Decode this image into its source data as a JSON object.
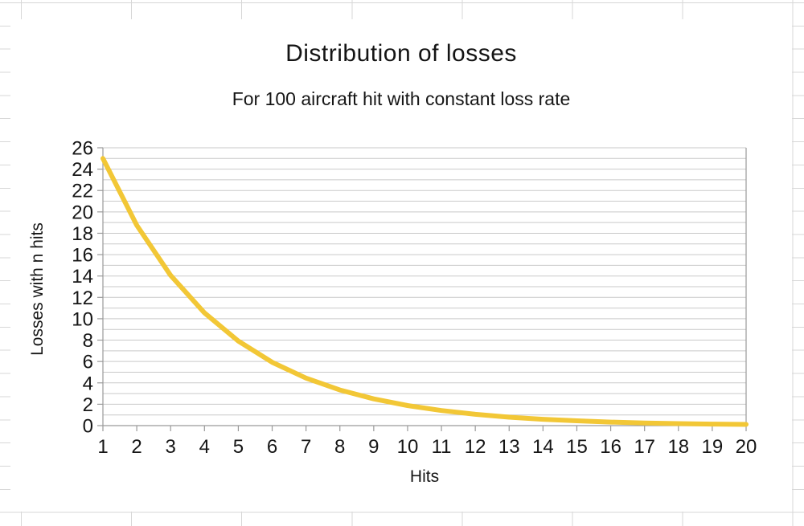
{
  "chart": {
    "title": "Distribution of losses",
    "subtitle": "For 100 aircraft hit with constant loss rate",
    "x_axis_title": "Hits",
    "y_axis_title": "Losses with n hits"
  },
  "chart_data": {
    "type": "line",
    "title": "Distribution of losses",
    "subtitle": "For 100 aircraft hit with constant loss rate",
    "xlabel": "Hits",
    "ylabel": "Losses with n hits",
    "x": [
      1,
      2,
      3,
      4,
      5,
      6,
      7,
      8,
      9,
      10,
      11,
      12,
      13,
      14,
      15,
      16,
      17,
      18,
      19,
      20
    ],
    "series": [
      {
        "name": "Losses with n hits",
        "values": [
          25,
          18.75,
          14.06,
          10.55,
          7.91,
          5.93,
          4.45,
          3.34,
          2.5,
          1.88,
          1.41,
          1.06,
          0.79,
          0.59,
          0.45,
          0.33,
          0.25,
          0.19,
          0.14,
          0.11
        ]
      }
    ],
    "xlim": [
      1,
      20
    ],
    "ylim": [
      0,
      26
    ],
    "x_tick_step": 1,
    "y_tick_step": 2,
    "y_grid_step": 1,
    "grid": "horizontal",
    "legend": "none"
  },
  "colors": {
    "line": "#F2C736",
    "axis": "#9a9a9a",
    "gridline": "#c9c9c9",
    "sheet_grid": "#d7d7d7",
    "text": "#161616",
    "background": "#ffffff"
  }
}
